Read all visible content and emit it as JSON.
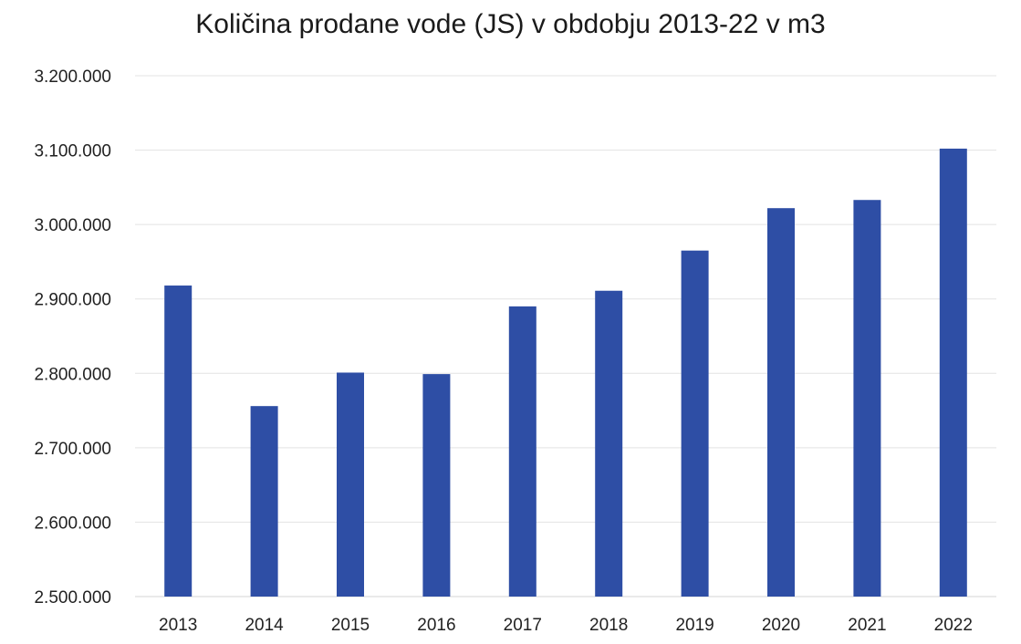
{
  "chart_data": {
    "type": "bar",
    "title": "Količina prodane vode (JS) v obdobju 2013-22 v m3",
    "xlabel": "",
    "ylabel": "",
    "categories": [
      "2013",
      "2014",
      "2015",
      "2016",
      "2017",
      "2018",
      "2019",
      "2020",
      "2021",
      "2022"
    ],
    "values": [
      2918000,
      2756000,
      2801000,
      2799000,
      2890000,
      2911000,
      2965000,
      3022000,
      3033000,
      3102000
    ],
    "ylim": [
      2500000,
      3200000
    ],
    "y_ticks": [
      2500000,
      2600000,
      2700000,
      2800000,
      2900000,
      3000000,
      3100000,
      3200000
    ],
    "y_tick_labels": [
      "2.500.000",
      "2.600.000",
      "2.700.000",
      "2.800.000",
      "2.900.000",
      "3.000.000",
      "3.100.000",
      "3.200.000"
    ],
    "grid": true,
    "legend": "none",
    "bar_color": "#2e4ea5",
    "grid_color": "#e3e3e3"
  }
}
